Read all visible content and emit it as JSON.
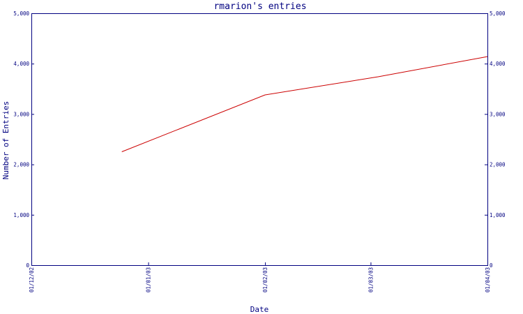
{
  "chart_data": {
    "type": "line",
    "title": "rmarion's entries",
    "xlabel": "Date",
    "ylabel": "Number of Entries",
    "x_ticks": [
      "01/12/02",
      "01/01/03",
      "01/02/03",
      "01/03/03",
      "01/04/03"
    ],
    "y_ticks": [
      "0",
      "1,000",
      "2,000",
      "3,000",
      "4,000",
      "5,000"
    ],
    "ylim": [
      0,
      5000
    ],
    "grid": false,
    "series": [
      {
        "x": [
          "2002-12-25",
          "2003-02-01",
          "2003-03-03",
          "2003-04-01"
        ],
        "y": [
          2250,
          3380,
          3740,
          4140
        ]
      }
    ],
    "colors": {
      "axis": "#000080",
      "text": "#000080",
      "line": "#cc0000"
    }
  }
}
